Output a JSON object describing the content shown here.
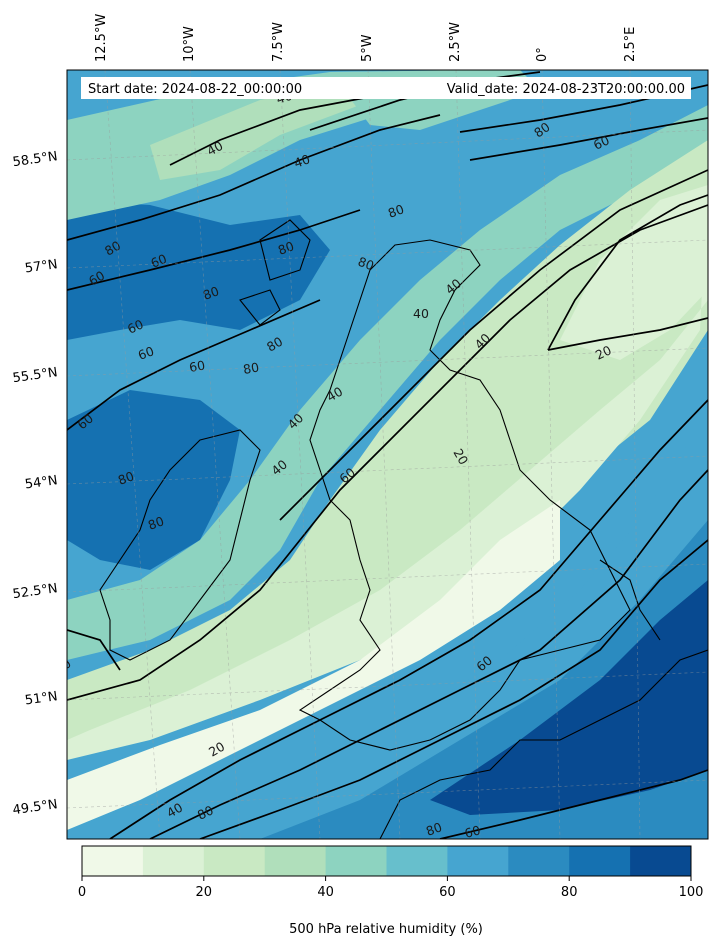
{
  "header": {
    "start_date": "Start date: 2024-08-22_00:00:00",
    "valid_date": "Valid_date: 2024-08-23T20:00:00.00"
  },
  "map": {
    "lon_labels": [
      "12.5°W",
      "10°W",
      "7.5°W",
      "5°W",
      "2.5°W",
      "0°",
      "2.5°E"
    ],
    "lat_labels": [
      "58.5°N",
      "57°N",
      "55.5°N",
      "54°N",
      "52.5°N",
      "51°N",
      "49.5°N"
    ],
    "contour_labels": [
      "40",
      "40",
      "40",
      "80",
      "60",
      "60",
      "80",
      "80",
      "60",
      "60",
      "60",
      "80",
      "80",
      "80",
      "80",
      "60",
      "80",
      "40",
      "40",
      "40",
      "40",
      "40",
      "40",
      "60",
      "20",
      "20",
      "60",
      "60",
      "20",
      "40",
      "80",
      "80",
      "60",
      "80",
      "80",
      "0"
    ]
  },
  "colorbar": {
    "ticks": [
      "0",
      "20",
      "40",
      "60",
      "80",
      "100"
    ],
    "label": "500 hPa relative humidity (%)",
    "levels": [
      0,
      10,
      20,
      30,
      40,
      50,
      60,
      70,
      80,
      90,
      100
    ],
    "colors": [
      "#f0f9e8",
      "#dbf1d5",
      "#c9e9c3",
      "#b0dfbb",
      "#8dd3c0",
      "#67bfcc",
      "#46a5d0",
      "#2b8bc0",
      "#1571b1",
      "#084a91"
    ]
  }
}
